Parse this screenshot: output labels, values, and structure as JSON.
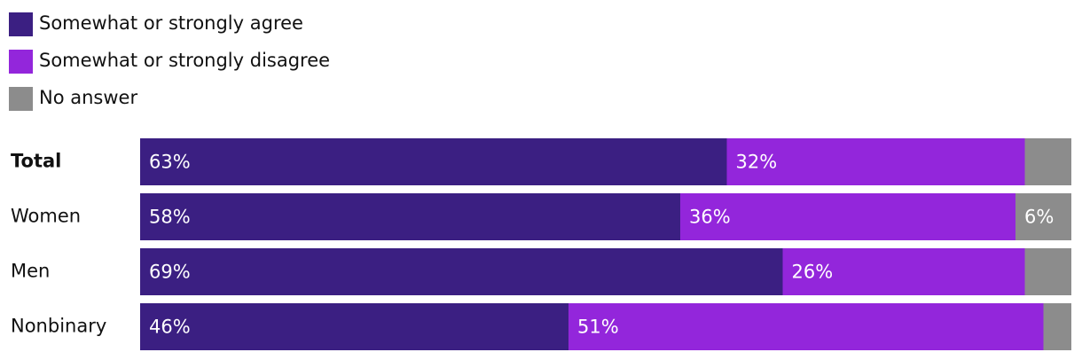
{
  "chart_data": {
    "type": "bar",
    "orientation": "horizontal",
    "stacked": true,
    "categories": [
      "Total",
      "Women",
      "Men",
      "Nonbinary"
    ],
    "series": [
      {
        "name": "Somewhat or strongly agree",
        "color": "#3b1f82",
        "values": [
          63,
          58,
          69,
          46
        ],
        "value_labels": [
          "63%",
          "58%",
          "69%",
          "46%"
        ]
      },
      {
        "name": "Somewhat or strongly disagree",
        "color": "#9326db",
        "values": [
          32,
          36,
          26,
          51
        ],
        "value_labels": [
          "32%",
          "36%",
          "26%",
          "51%"
        ]
      },
      {
        "name": "No answer",
        "color": "#8c8c8c",
        "values": [
          5,
          6,
          5,
          3
        ],
        "value_labels": [
          null,
          "6%",
          null,
          null
        ]
      }
    ],
    "xlim": [
      0,
      100
    ]
  }
}
